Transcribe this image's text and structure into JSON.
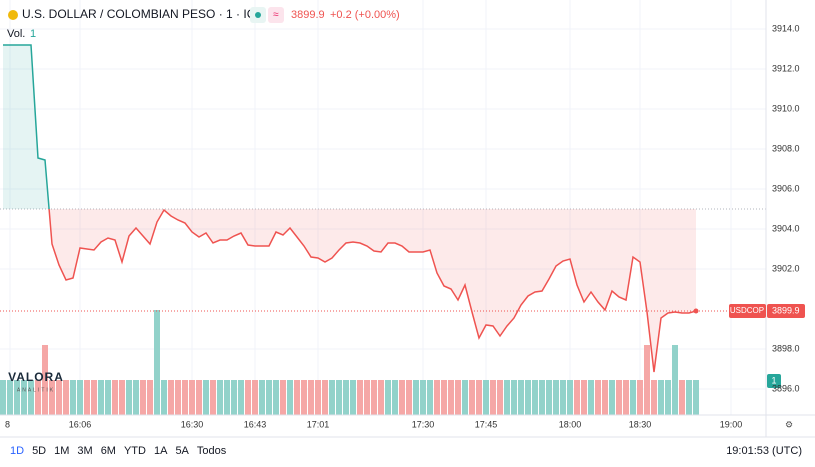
{
  "chart_data": {
    "type": "line",
    "title": "U.S. DOLLAR / COLOMBIAN PESO · 1 · ICE",
    "price_label": "3899.9",
    "change_label": "+0.2 (+0.00%)",
    "volume_title": "Vol.",
    "volume_label": "1",
    "baseline": 3905,
    "up_color": "#26a69a",
    "down_color": "#ef5350",
    "volume_up_color": "#92d2ca",
    "volume_down_color": "#f5a7a6",
    "categories": [
      null,
      "8",
      null,
      null,
      null,
      null,
      null,
      null,
      null,
      null,
      null,
      "16:06",
      null,
      null,
      null,
      null,
      null,
      null,
      null,
      null,
      null,
      null,
      null,
      null,
      null,
      null,
      null,
      "16:30",
      null,
      null,
      null,
      null,
      null,
      null,
      null,
      null,
      "16:43",
      null,
      null,
      null,
      null,
      null,
      null,
      null,
      null,
      "17:01",
      null,
      null,
      null,
      null,
      null,
      null,
      null,
      null,
      null,
      null,
      null,
      null,
      null,
      null,
      "17:30",
      null,
      null,
      null,
      null,
      null,
      null,
      null,
      null,
      "17:45",
      null,
      null,
      null,
      null,
      null,
      null,
      null,
      null,
      null,
      null,
      null,
      "18:00",
      null,
      null,
      null,
      null,
      null,
      null,
      null,
      null,
      null,
      "18:30",
      null,
      null,
      null,
      null,
      null,
      null,
      null,
      null,
      null,
      null,
      null,
      null,
      "19:00"
    ],
    "series": [
      {
        "name": "USDCOP",
        "values": [
          3913.2,
          3913.2,
          3913.2,
          3913.2,
          3913.2,
          3907.55,
          3907.45,
          3903.25,
          3902.2,
          3901.45,
          3901.55,
          3903.05,
          3903.0,
          3902.95,
          3903.35,
          3903.55,
          3903.45,
          3902.35,
          3903.65,
          3904.05,
          3903.65,
          3903.25,
          3904.35,
          3904.95,
          3904.65,
          3904.45,
          3904.3,
          3903.85,
          3903.6,
          3903.8,
          3903.3,
          3903.45,
          3903.45,
          3903.65,
          3903.8,
          3903.2,
          3903.15,
          3903.15,
          3903.15,
          3903.85,
          3903.7,
          3904.05,
          3903.6,
          3903.15,
          3902.6,
          3902.55,
          3902.35,
          3902.55,
          3902.95,
          3903.3,
          3903.35,
          3903.3,
          3903.15,
          3902.9,
          3902.85,
          3903.3,
          3903.3,
          3903.15,
          3902.85,
          3902.85,
          3902.85,
          3902.95,
          3901.8,
          3901.15,
          3901.0,
          3900.45,
          3901.2,
          3899.85,
          3898.55,
          3899.2,
          3899.15,
          3898.65,
          3899.15,
          3899.55,
          3900.2,
          3900.65,
          3900.85,
          3900.9,
          3901.5,
          3902.15,
          3902.4,
          3902.5,
          3901.2,
          3900.35,
          3900.85,
          3900.35,
          3899.95,
          3900.9,
          3900.6,
          3900.45,
          3902.6,
          3902.35,
          3899.85,
          3896.85,
          3899.55,
          3899.8,
          3899.85,
          3899.8,
          3899.8,
          3899.9,
          null,
          null,
          null,
          null,
          null
        ]
      }
    ],
    "volume": [
      1,
      1,
      1,
      1,
      1,
      1,
      2,
      1,
      1,
      1,
      1,
      1,
      1,
      1,
      1,
      1,
      1,
      1,
      1,
      1,
      1,
      1,
      3,
      1,
      1,
      1,
      1,
      1,
      1,
      1,
      1,
      1,
      1,
      1,
      1,
      1,
      1,
      1,
      1,
      1,
      1,
      1,
      1,
      1,
      1,
      1,
      1,
      1,
      1,
      1,
      1,
      1,
      1,
      1,
      1,
      1,
      1,
      1,
      1,
      1,
      1,
      1,
      1,
      1,
      1,
      1,
      1,
      1,
      1,
      1,
      1,
      1,
      1,
      1,
      1,
      1,
      1,
      1,
      1,
      1,
      1,
      1,
      1,
      1,
      1,
      1,
      1,
      1,
      1,
      1,
      1,
      1,
      2,
      1,
      1,
      1,
      2,
      1,
      1,
      1,
      null,
      null,
      null,
      null,
      null
    ],
    "ylim": [
      3894.7,
      3915.45
    ],
    "yticks": [
      {
        "value": 3914,
        "label": "3914.0"
      },
      {
        "value": 3912,
        "label": "3912.0"
      },
      {
        "value": 3910,
        "label": "3910.0"
      },
      {
        "value": 3908,
        "label": "3908.0"
      },
      {
        "value": 3906,
        "label": "3906.0"
      },
      {
        "value": 3904,
        "label": "3904.0"
      },
      {
        "value": 3902,
        "label": "3902.0"
      },
      {
        "value": 3898,
        "label": "3898.0"
      },
      {
        "value": 3896,
        "label": "3896.0"
      }
    ],
    "grid": true
  },
  "logo": {
    "name": "VALORA",
    "tagline": "ANALITIK"
  },
  "toolbar": {
    "ranges": [
      "1D",
      "5D",
      "1M",
      "3M",
      "6M",
      "YTD",
      "1A",
      "5A",
      "Todos"
    ],
    "clock": "19:01:53 (UTC)"
  }
}
